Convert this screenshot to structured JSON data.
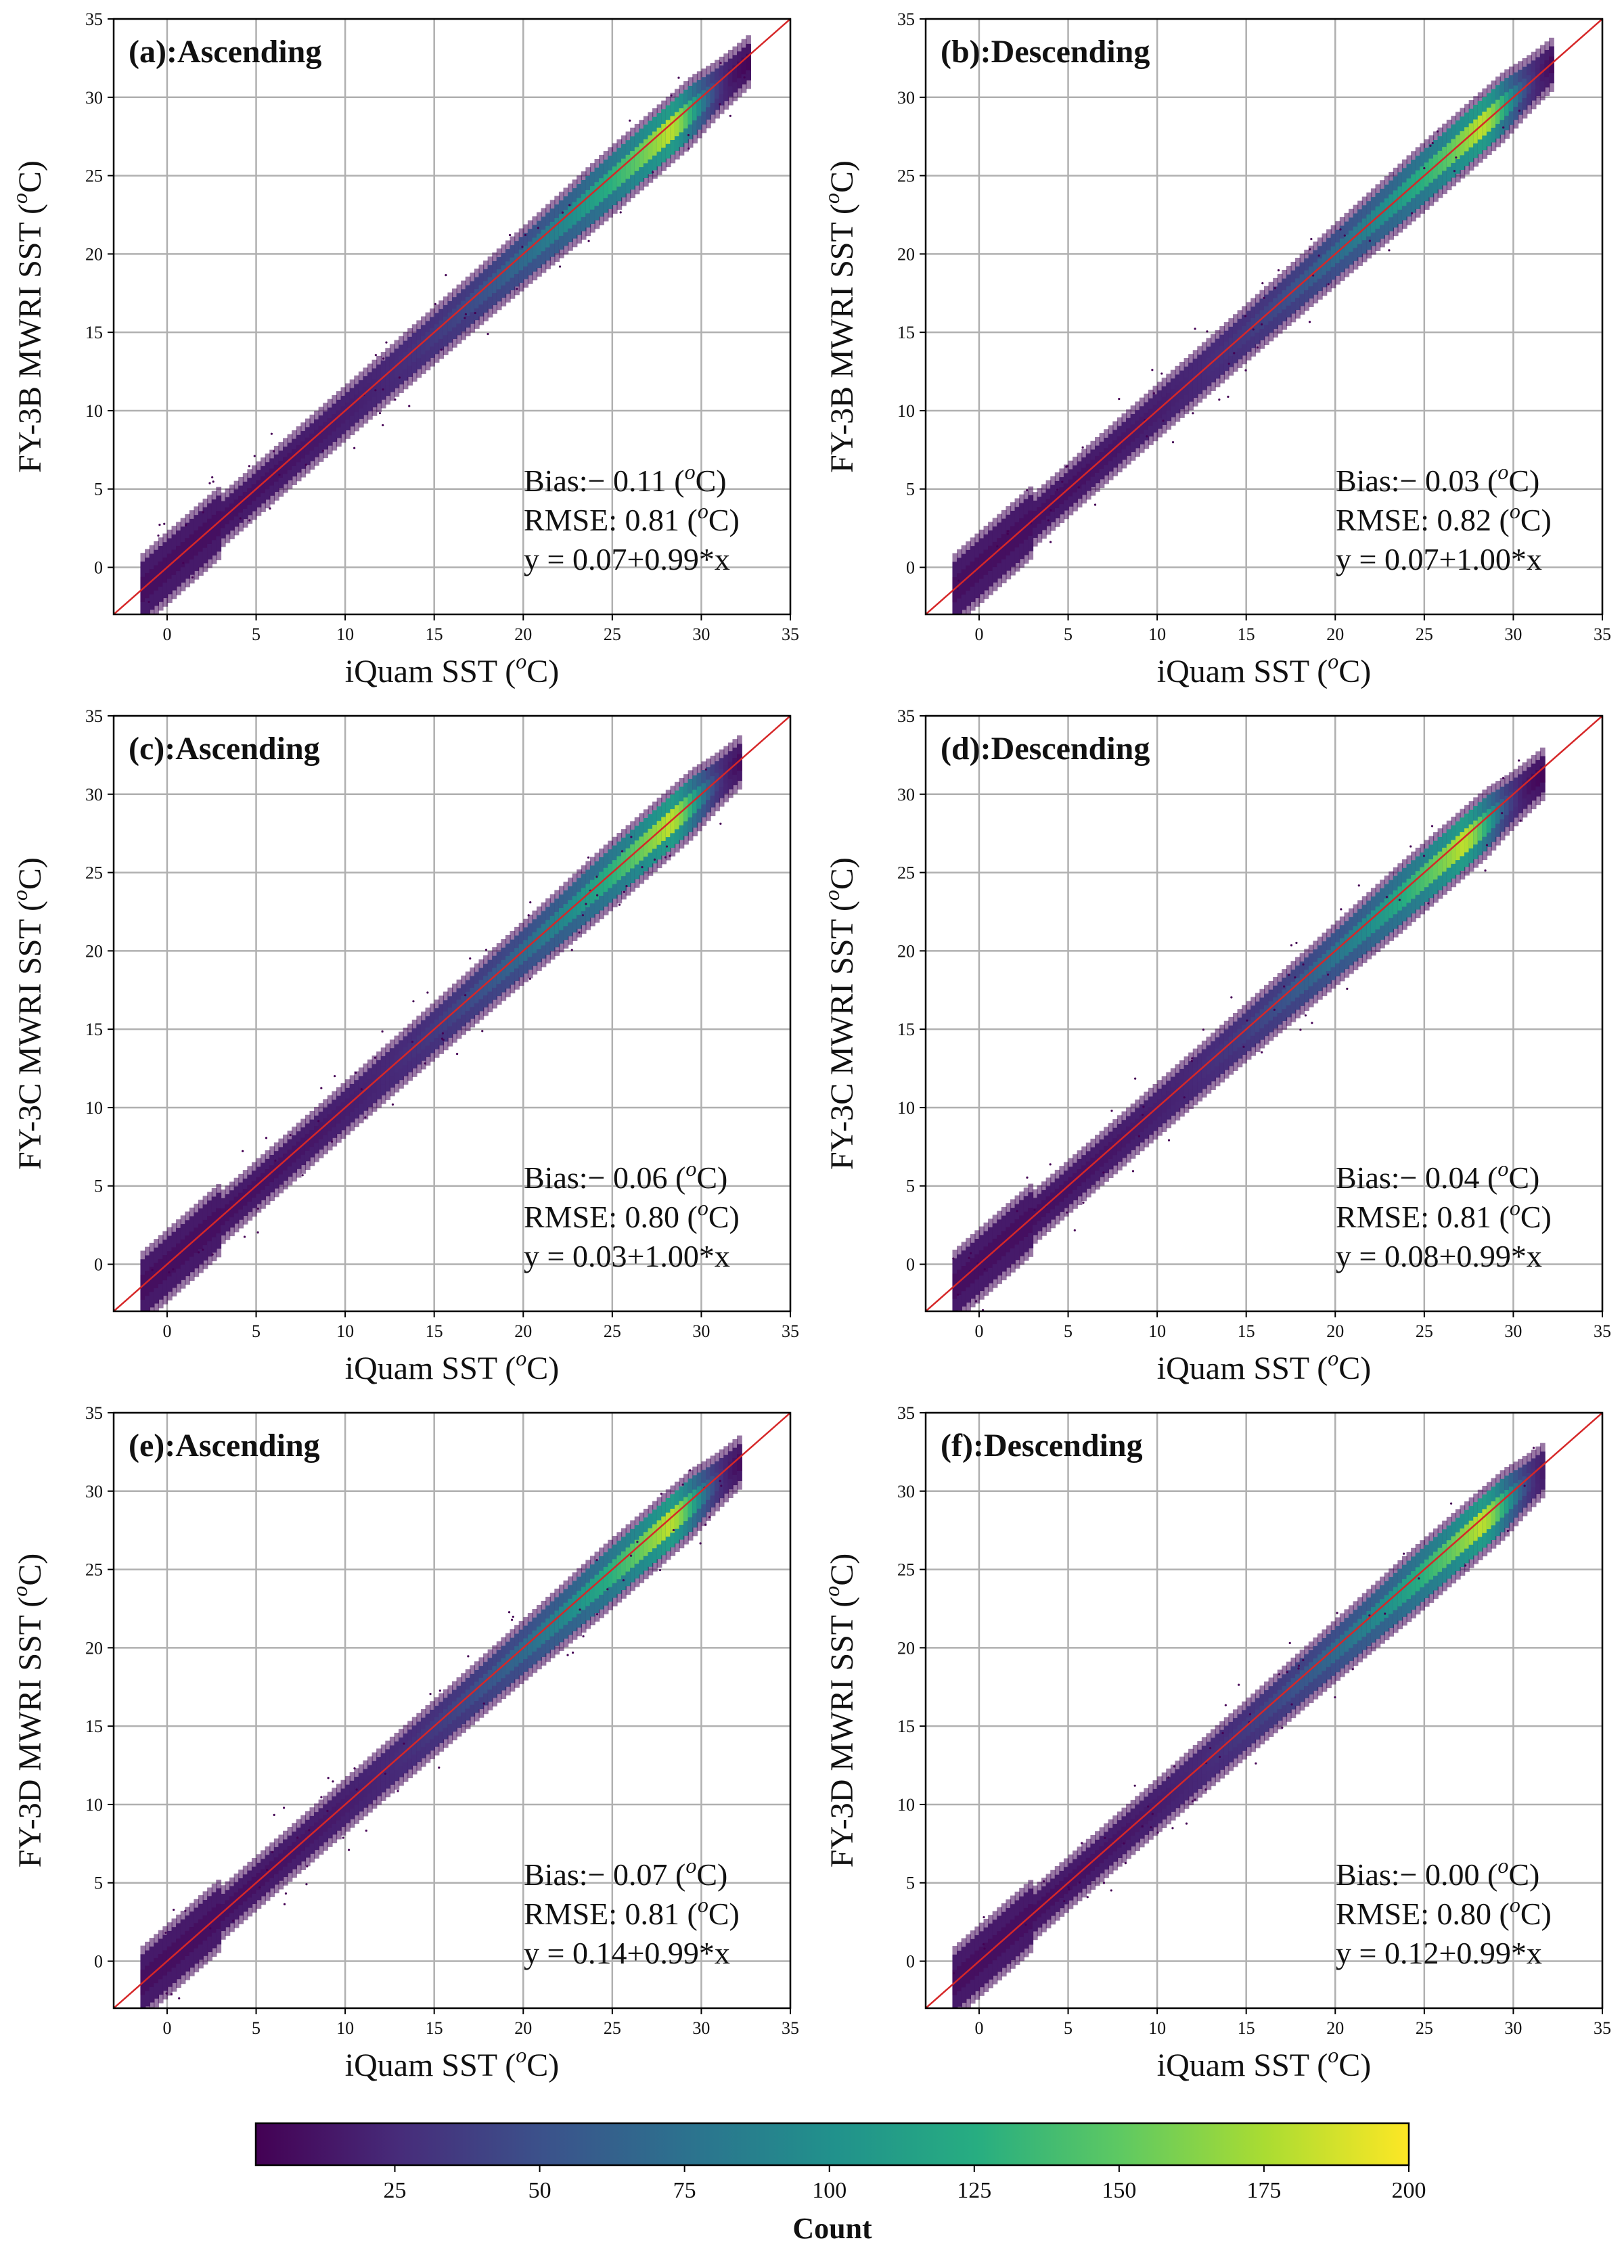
{
  "chart_data": [
    {
      "type": "scatter",
      "panel": "(a)",
      "title": "(a):Ascending",
      "xlabel": "iQuam SST (°C)",
      "ylabel": "FY-3B MWRI SST (°C)",
      "xlabel_main": "iQuam SST (",
      "ylabel_main": "FY-3B MWRI SST (",
      "label_sup": "o",
      "label_unit": "C)",
      "xlim": [
        -3,
        35
      ],
      "ylim": [
        -3,
        35
      ],
      "xticks": [
        0,
        5,
        10,
        15,
        20,
        25,
        30,
        35
      ],
      "yticks": [
        0,
        5,
        10,
        15,
        20,
        25,
        30,
        35
      ],
      "grid": true,
      "bias_label": "Bias:− 0.11 (",
      "bias": -0.11,
      "rmse_label": "RMSE: 0.81 (",
      "rmse": 0.81,
      "regression_label": "y = 0.07+0.99*x",
      "intercept": 0.07,
      "slope": 0.99,
      "reference_line": "1:1",
      "x_range": [
        -1.5,
        32.5
      ],
      "density_peak_x": 28
    },
    {
      "type": "scatter",
      "panel": "(b)",
      "title": "(b):Descending",
      "xlabel": "iQuam SST (°C)",
      "ylabel": "FY-3B MWRI SST (°C)",
      "xlabel_main": "iQuam SST (",
      "ylabel_main": "FY-3B MWRI SST (",
      "label_sup": "o",
      "label_unit": "C)",
      "xlim": [
        -3,
        35
      ],
      "ylim": [
        -3,
        35
      ],
      "xticks": [
        0,
        5,
        10,
        15,
        20,
        25,
        30,
        35
      ],
      "yticks": [
        0,
        5,
        10,
        15,
        20,
        25,
        30,
        35
      ],
      "grid": true,
      "bias_label": "Bias:− 0.03 (",
      "bias": -0.03,
      "rmse_label": "RMSE: 0.82 (",
      "rmse": 0.82,
      "regression_label": "y = 0.07+1.00*x",
      "intercept": 0.07,
      "slope": 1.0,
      "reference_line": "1:1",
      "x_range": [
        -1.5,
        32.0
      ],
      "density_peak_x": 28
    },
    {
      "type": "scatter",
      "panel": "(c)",
      "title": "(c):Ascending",
      "xlabel": "iQuam SST (°C)",
      "ylabel": "FY-3C MWRI SST (°C)",
      "xlabel_main": "iQuam SST (",
      "ylabel_main": "FY-3C MWRI SST (",
      "label_sup": "o",
      "label_unit": "C)",
      "xlim": [
        -3,
        35
      ],
      "ylim": [
        -3,
        35
      ],
      "xticks": [
        0,
        5,
        10,
        15,
        20,
        25,
        30,
        35
      ],
      "yticks": [
        0,
        5,
        10,
        15,
        20,
        25,
        30,
        35
      ],
      "grid": true,
      "bias_label": "Bias:− 0.06 (",
      "bias": -0.06,
      "rmse_label": "RMSE: 0.80 (",
      "rmse": 0.8,
      "regression_label": "y = 0.03+1.00*x",
      "intercept": 0.03,
      "slope": 1.0,
      "reference_line": "1:1",
      "x_range": [
        -1.5,
        32.0
      ],
      "density_peak_x": 28
    },
    {
      "type": "scatter",
      "panel": "(d)",
      "title": "(d):Descending",
      "xlabel": "iQuam SST (°C)",
      "ylabel": "FY-3C MWRI SST (°C)",
      "xlabel_main": "iQuam SST (",
      "ylabel_main": "FY-3C MWRI SST (",
      "label_sup": "o",
      "label_unit": "C)",
      "xlim": [
        -3,
        35
      ],
      "ylim": [
        -3,
        35
      ],
      "xticks": [
        0,
        5,
        10,
        15,
        20,
        25,
        30,
        35
      ],
      "yticks": [
        0,
        5,
        10,
        15,
        20,
        25,
        30,
        35
      ],
      "grid": true,
      "bias_label": "Bias:− 0.04 (",
      "bias": -0.04,
      "rmse_label": "RMSE: 0.81 (",
      "rmse": 0.81,
      "regression_label": "y = 0.08+0.99*x",
      "intercept": 0.08,
      "slope": 0.99,
      "reference_line": "1:1",
      "x_range": [
        -1.5,
        31.5
      ],
      "density_peak_x": 27
    },
    {
      "type": "scatter",
      "panel": "(e)",
      "title": "(e):Ascending",
      "xlabel": "iQuam SST (°C)",
      "ylabel": "FY-3D MWRI SST (°C)",
      "xlabel_main": "iQuam SST (",
      "ylabel_main": "FY-3D MWRI SST (",
      "label_sup": "o",
      "label_unit": "C)",
      "xlim": [
        -3,
        35
      ],
      "ylim": [
        -3,
        35
      ],
      "xticks": [
        0,
        5,
        10,
        15,
        20,
        25,
        30,
        35
      ],
      "yticks": [
        0,
        5,
        10,
        15,
        20,
        25,
        30,
        35
      ],
      "grid": true,
      "bias_label": "Bias:− 0.07 (",
      "bias": -0.07,
      "rmse_label": "RMSE: 0.81 (",
      "rmse": 0.81,
      "regression_label": "y = 0.14+0.99*x",
      "intercept": 0.14,
      "slope": 0.99,
      "reference_line": "1:1",
      "x_range": [
        -1.5,
        32.0
      ],
      "density_peak_x": 28
    },
    {
      "type": "scatter",
      "panel": "(f)",
      "title": "(f):Descending",
      "xlabel": "iQuam SST (°C)",
      "ylabel": "FY-3D MWRI SST (°C)",
      "xlabel_main": "iQuam SST (",
      "ylabel_main": "FY-3D MWRI SST (",
      "label_sup": "o",
      "label_unit": "C)",
      "xlim": [
        -3,
        35
      ],
      "ylim": [
        -3,
        35
      ],
      "xticks": [
        0,
        5,
        10,
        15,
        20,
        25,
        30,
        35
      ],
      "yticks": [
        0,
        5,
        10,
        15,
        20,
        25,
        30,
        35
      ],
      "grid": true,
      "bias_label": "Bias:− 0.00 (",
      "bias": 0.0,
      "rmse_label": "RMSE: 0.80 (",
      "rmse": 0.8,
      "regression_label": "y = 0.12+0.99*x",
      "intercept": 0.12,
      "slope": 0.99,
      "reference_line": "1:1",
      "x_range": [
        -1.5,
        31.5
      ],
      "density_peak_x": 28
    }
  ],
  "colorbar": {
    "label": "Count",
    "min": 1,
    "max": 200,
    "ticks": [
      25,
      50,
      75,
      100,
      125,
      150,
      175,
      200
    ],
    "colormap": "viridis",
    "colors": [
      "#440154",
      "#472c7a",
      "#3b528b",
      "#2c728e",
      "#21918c",
      "#27ad81",
      "#5ec962",
      "#aadc32",
      "#fde725"
    ]
  },
  "colors": {
    "one_to_one_line": "#d62728",
    "grid": "#b0b0b0",
    "axes": "#000000"
  }
}
